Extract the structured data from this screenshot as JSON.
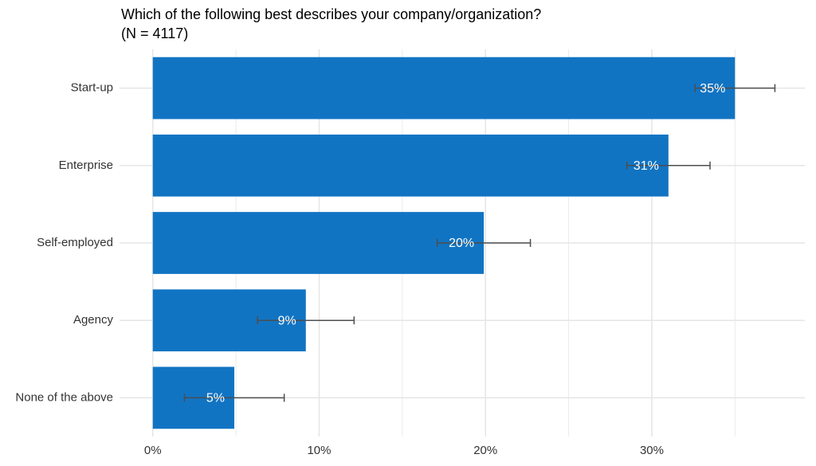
{
  "chart_data": {
    "type": "bar",
    "orientation": "horizontal",
    "title": "Which of the following best describes your company/organization?",
    "subtitle": "(N = 4117)",
    "categories": [
      "Start-up",
      "Enterprise",
      "Self-employed",
      "Agency",
      "None of the above"
    ],
    "values": [
      35,
      31,
      19.9,
      9.2,
      4.9
    ],
    "value_labels": [
      "35%",
      "31%",
      "20%",
      "9%",
      "5%"
    ],
    "errors": [
      2.4,
      2.5,
      2.8,
      2.9,
      3.0
    ],
    "color": "#1174c3",
    "error_color": "#4d4d4d",
    "xlim": [
      -2,
      39.2
    ],
    "xticks": [
      {
        "value": 0,
        "label": "0%"
      },
      {
        "value": 10,
        "label": "10%"
      },
      {
        "value": 20,
        "label": "20%"
      },
      {
        "value": 30,
        "label": "30%"
      }
    ],
    "xticks_minor": [
      5,
      15,
      25,
      35
    ],
    "grid": true
  }
}
